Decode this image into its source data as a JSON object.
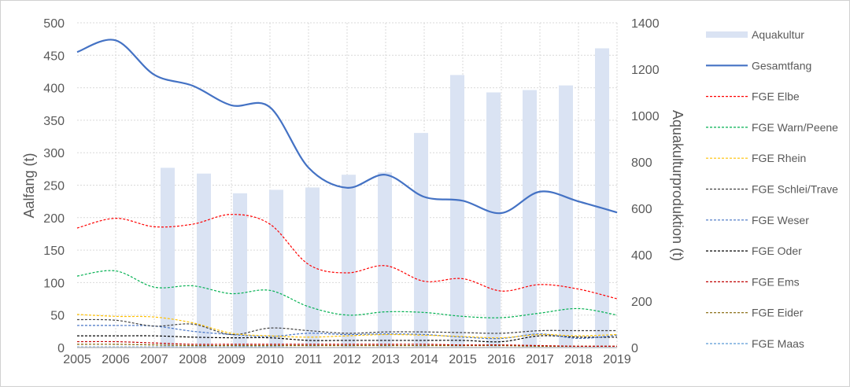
{
  "chart_data": {
    "type": "bar+line",
    "categories": [
      "2005",
      "2006",
      "2007",
      "2008",
      "2009",
      "2010",
      "2011",
      "2012",
      "2013",
      "2014",
      "2015",
      "2016",
      "2017",
      "2018",
      "2019"
    ],
    "ylabel": "Aalfang (t)",
    "y2label": "Aquakulturproduktion (t)",
    "ylim": [
      0,
      500
    ],
    "y2lim": [
      0,
      1400
    ],
    "yticks": [
      0,
      50,
      100,
      150,
      200,
      250,
      300,
      350,
      400,
      450,
      500
    ],
    "y2ticks": [
      0,
      200,
      400,
      600,
      800,
      1000,
      1200,
      1400
    ],
    "grid": true,
    "legend": "right",
    "bar_series": {
      "name": "Aquakultur",
      "color": "#DAE3F3",
      "axis": "right",
      "categories": [
        "2007",
        "2008",
        "2009",
        "2010",
        "2011",
        "2012",
        "2013",
        "2014",
        "2015",
        "2016",
        "2017",
        "2018",
        "2019"
      ],
      "values": [
        775,
        750,
        665,
        680,
        690,
        745,
        755,
        925,
        1175,
        1100,
        1110,
        1130,
        1290
      ]
    },
    "series": [
      {
        "name": "Gesamtfang",
        "color": "#4472C4",
        "style": "solid",
        "values": [
          455,
          473,
          420,
          403,
          373,
          370,
          277,
          246,
          266,
          232,
          226,
          207,
          240,
          225,
          208
        ]
      },
      {
        "name": "FGE Elbe",
        "color": "#FF0000",
        "style": "dashed",
        "values": [
          184,
          199,
          186,
          190,
          205,
          190,
          128,
          115,
          126,
          102,
          106,
          87,
          97,
          90,
          75
        ]
      },
      {
        "name": "FGE Warn/Peene",
        "color": "#00B050",
        "style": "dashed",
        "values": [
          110,
          118,
          93,
          95,
          83,
          88,
          63,
          50,
          55,
          54,
          48,
          46,
          53,
          60,
          50
        ]
      },
      {
        "name": "FGE Rhein",
        "color": "#FFC000",
        "style": "dashed",
        "values": [
          51,
          48,
          47,
          38,
          22,
          18,
          16,
          18,
          20,
          19,
          17,
          15,
          20,
          18,
          20
        ]
      },
      {
        "name": "FGE Schlei/Trave",
        "color": "#404040",
        "style": "dashed",
        "values": [
          43,
          42,
          33,
          36,
          20,
          30,
          26,
          22,
          24,
          24,
          23,
          22,
          26,
          26,
          26
        ]
      },
      {
        "name": "FGE Weser",
        "color": "#4472C4",
        "style": "dashed",
        "values": [
          34,
          34,
          33,
          25,
          20,
          17,
          22,
          20,
          21,
          20,
          16,
          14,
          21,
          14,
          19
        ]
      },
      {
        "name": "FGE Oder",
        "color": "#000000",
        "style": "dashed",
        "values": [
          18,
          18,
          18,
          16,
          15,
          15,
          11,
          11,
          11,
          11,
          11,
          9,
          18,
          16,
          16
        ]
      },
      {
        "name": "FGE Ems",
        "color": "#C00000",
        "style": "dashed",
        "values": [
          9,
          9,
          7,
          5,
          5,
          5,
          5,
          5,
          5,
          5,
          4,
          4,
          3,
          2,
          2
        ]
      },
      {
        "name": "FGE Eider",
        "color": "#806000",
        "style": "dashed",
        "values": [
          5,
          5,
          4,
          3,
          3,
          3,
          3,
          3,
          3,
          3,
          3,
          3,
          2,
          2,
          2
        ]
      },
      {
        "name": "FGE Maas",
        "color": "#5B9BD5",
        "style": "dashed",
        "values": [
          1,
          1,
          1,
          1,
          1,
          1,
          0,
          0,
          0,
          0,
          0,
          0,
          0,
          0,
          0
        ]
      }
    ]
  }
}
